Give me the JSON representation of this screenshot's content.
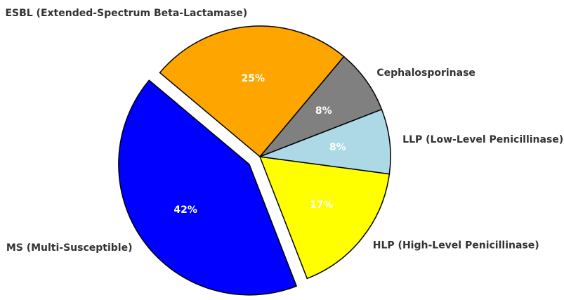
{
  "chart_data": {
    "type": "pie",
    "categories": [
      "MS (Multi-Susceptible)",
      "HLP (High-Level Penicillinase)",
      "LLP (Low-Level Penicillinase)",
      "Cephalosporinase",
      "ESBL (Extended-Spectrum Beta-Lactamase)"
    ],
    "values": [
      42,
      17,
      8,
      8,
      25
    ],
    "value_labels": [
      "42%",
      "17%",
      "8%",
      "8%",
      "25%"
    ],
    "colors": [
      "#0000ff",
      "#ffff00",
      "#add8e6",
      "#808080",
      "#ffa500"
    ]
  }
}
